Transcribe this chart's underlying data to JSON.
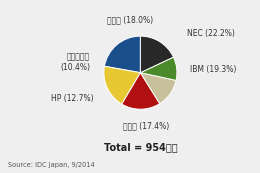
{
  "labels": [
    "NEC (22.2%)",
    "IBM (19.3%)",
    "富士通 (17.4%)",
    "HP (12.7%)",
    "日立製作所\n(10.4%)",
    "その他 (18.0%)"
  ],
  "values": [
    22.2,
    19.3,
    17.4,
    12.7,
    10.4,
    18.0
  ],
  "colors": [
    "#1b4f8c",
    "#e8c832",
    "#b01010",
    "#c8c09a",
    "#4a8a2a",
    "#282828"
  ],
  "total_text": "Total = 954億円",
  "source_text": "Source: IDC Japan, 9/2014",
  "startangle": 90,
  "background_color": "#efefef"
}
